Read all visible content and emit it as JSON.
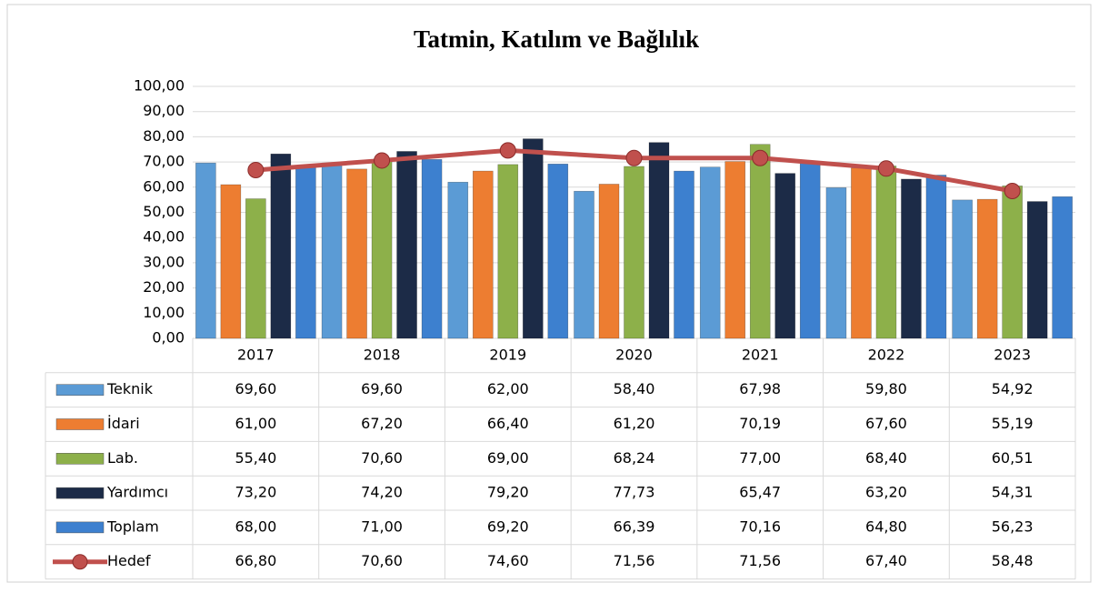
{
  "chart_data": {
    "type": "bar",
    "title": "Tatmin, Katılım ve Bağlılık",
    "categories": [
      "2017",
      "2018",
      "2019",
      "2020",
      "2021",
      "2022",
      "2023"
    ],
    "ylim": [
      0,
      100
    ],
    "yticks": [
      {
        "value": 0,
        "label": "0,00"
      },
      {
        "value": 10,
        "label": "10,00"
      },
      {
        "value": 20,
        "label": "20,00"
      },
      {
        "value": 30,
        "label": "30,00"
      },
      {
        "value": 40,
        "label": "40,00"
      },
      {
        "value": 50,
        "label": "50,00"
      },
      {
        "value": 60,
        "label": "60,00"
      },
      {
        "value": 70,
        "label": "70,00"
      },
      {
        "value": 80,
        "label": "80,00"
      },
      {
        "value": 90,
        "label": "90,00"
      },
      {
        "value": 100,
        "label": "100,00"
      }
    ],
    "grid": true,
    "series": [
      {
        "name": "Teknik",
        "type": "bar",
        "color": "#5b9bd5",
        "values": [
          69.6,
          69.6,
          62.0,
          58.4,
          67.98,
          59.8,
          54.92
        ],
        "value_labels": [
          "69,60",
          "69,60",
          "62,00",
          "58,40",
          "67,98",
          "59,80",
          "54,92"
        ]
      },
      {
        "name": "İdari",
        "type": "bar",
        "color": "#ed7d31",
        "values": [
          61.0,
          67.2,
          66.4,
          61.2,
          70.19,
          67.6,
          55.19
        ],
        "value_labels": [
          "61,00",
          "67,20",
          "66,40",
          "61,20",
          "70,19",
          "67,60",
          "55,19"
        ]
      },
      {
        "name": "Lab.",
        "type": "bar",
        "color": "#8db04a",
        "values": [
          55.4,
          70.6,
          69.0,
          68.24,
          77.0,
          68.4,
          60.51
        ],
        "value_labels": [
          "55,40",
          "70,60",
          "69,00",
          "68,24",
          "77,00",
          "68,40",
          "60,51"
        ]
      },
      {
        "name": "Yardımcı",
        "type": "bar",
        "color": "#1c2b47",
        "values": [
          73.2,
          74.2,
          79.2,
          77.73,
          65.47,
          63.2,
          54.31
        ],
        "value_labels": [
          "73,20",
          "74,20",
          "79,20",
          "77,73",
          "65,47",
          "63,20",
          "54,31"
        ]
      },
      {
        "name": "Toplam",
        "type": "bar",
        "color": "#3d80cf",
        "values": [
          68.0,
          71.0,
          69.2,
          66.39,
          70.16,
          64.8,
          56.23
        ],
        "value_labels": [
          "68,00",
          "71,00",
          "69,20",
          "66,39",
          "70,16",
          "64,80",
          "56,23"
        ]
      },
      {
        "name": "Hedef",
        "type": "line",
        "color": "#c0504d",
        "values": [
          66.8,
          70.6,
          74.6,
          71.56,
          71.56,
          67.4,
          58.48
        ],
        "value_labels": [
          "66,80",
          "70,60",
          "74,60",
          "71,56",
          "71,56",
          "67,40",
          "58,48"
        ]
      }
    ]
  }
}
